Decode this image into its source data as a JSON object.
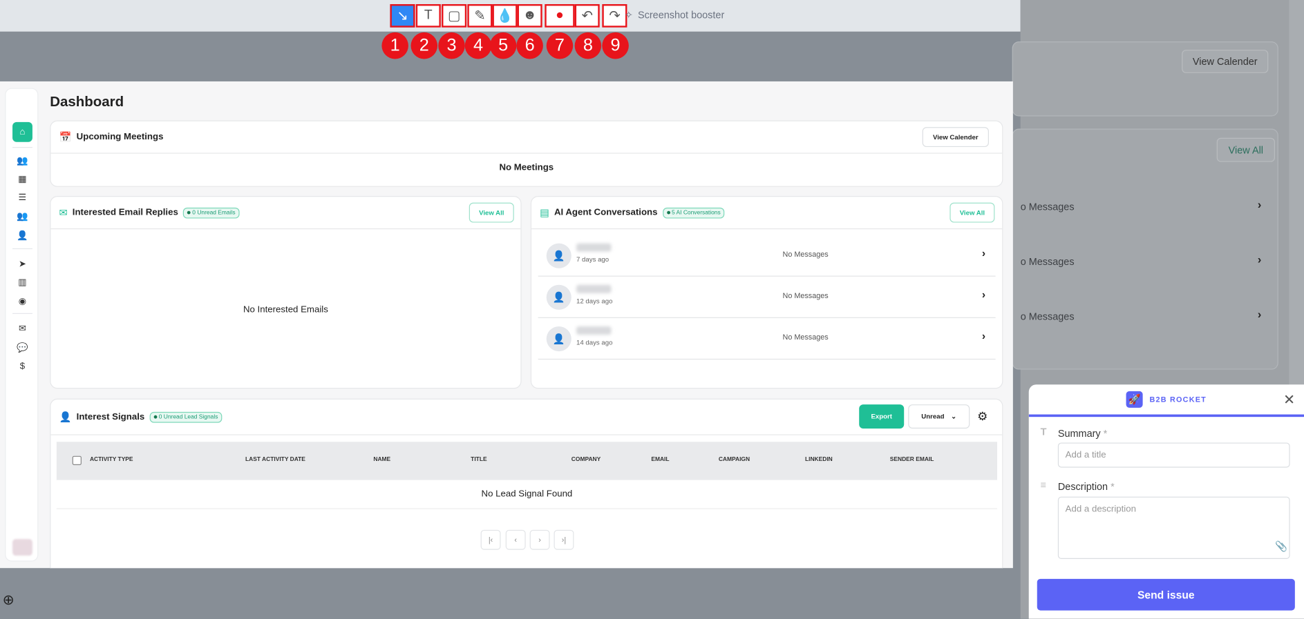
{
  "toolbar": {
    "tools": [
      {
        "num": "1",
        "icon": "arrow-icon",
        "glyph": "↘"
      },
      {
        "num": "2",
        "icon": "text-icon",
        "glyph": "T"
      },
      {
        "num": "3",
        "icon": "rectangle-icon",
        "glyph": "▢"
      },
      {
        "num": "4",
        "icon": "pencil-icon",
        "glyph": "✎"
      },
      {
        "num": "5",
        "icon": "blur-drop-icon",
        "glyph": "💧"
      },
      {
        "num": "6",
        "icon": "emoji-icon",
        "glyph": "☻"
      },
      {
        "num": "7",
        "icon": "record-icon",
        "glyph": "●"
      },
      {
        "num": "8",
        "icon": "undo-icon",
        "glyph": "↶"
      },
      {
        "num": "9",
        "icon": "redo-icon",
        "glyph": "↷"
      }
    ],
    "booster_label": "Screenshot booster",
    "active_color": "#2f88f5",
    "marker_color": "#e8141b"
  },
  "background_page": {
    "view_calender": "View Calender",
    "view_all": "View All",
    "messages": [
      "o Messages",
      "o Messages",
      "o Messages"
    ]
  },
  "dashboard": {
    "title": "Dashboard",
    "meetings": {
      "title": "Upcoming Meetings",
      "button": "View Calender",
      "empty": "No Meetings"
    },
    "emails": {
      "title": "Interested Email Replies",
      "badge": "0 Unread Emails",
      "button": "View All",
      "empty": "No Interested Emails"
    },
    "ai": {
      "title": "AI Agent Conversations",
      "badge": "5 AI Conversations",
      "button": "View All",
      "conversations": [
        {
          "ago": "7 days ago",
          "message": "No Messages"
        },
        {
          "ago": "12 days ago",
          "message": "No Messages"
        },
        {
          "ago": "14 days ago",
          "message": "No Messages"
        }
      ]
    },
    "signals": {
      "title": "Interest Signals",
      "badge": "0 Unread Lead Signals",
      "export": "Export",
      "filter": "Unread",
      "columns": [
        "ACTIVITY TYPE",
        "LAST ACTIVITY DATE",
        "NAME",
        "TITLE",
        "COMPANY",
        "EMAIL",
        "CAMPAIGN",
        "LINKEDIN",
        "SENDER EMAIL"
      ],
      "empty": "No Lead Signal Found"
    },
    "accent": "#1fbf96"
  },
  "widget": {
    "brand": "B2B ROCKET",
    "summary_label": "Summary",
    "summary_placeholder": "Add a title",
    "description_label": "Description",
    "description_placeholder": "Add a description",
    "required": "*",
    "send": "Send issue",
    "brand_color": "#5b63f5"
  }
}
